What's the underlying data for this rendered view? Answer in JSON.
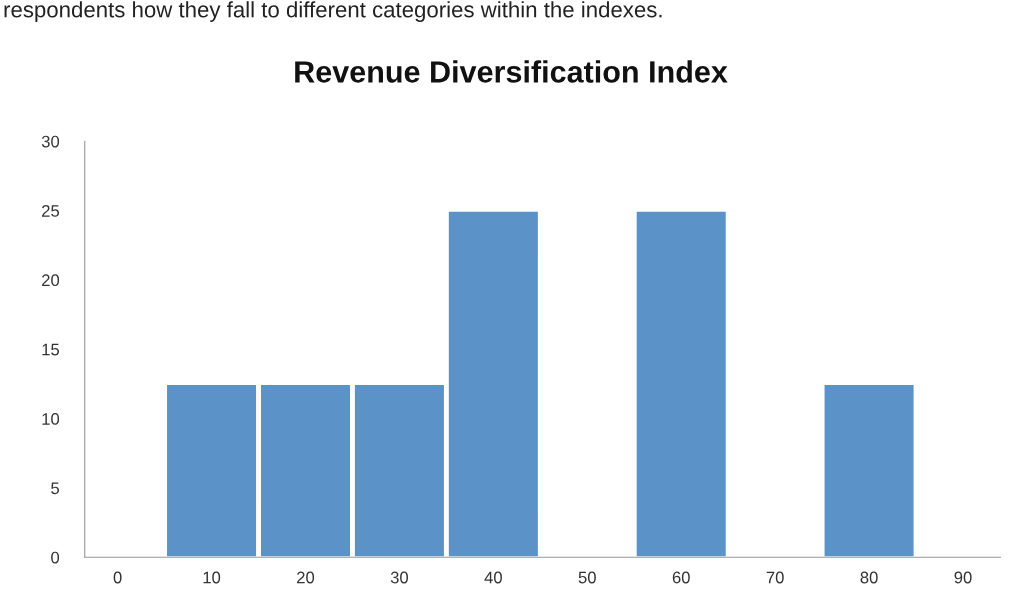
{
  "chart_data": {
    "type": "bar",
    "title": "Revenue Diversification Index",
    "annotations": [
      "respondents how they fall to different categories within the indexes."
    ],
    "categories": [
      "0",
      "10",
      "20",
      "30",
      "40",
      "50",
      "60",
      "70",
      "80",
      "90"
    ],
    "values": [
      0,
      12.5,
      12.5,
      12.5,
      25,
      0,
      25,
      0,
      12.5,
      0
    ],
    "color": "#5b93c8",
    "ylim": [
      0,
      30
    ],
    "yticks": [
      0,
      5,
      10,
      15,
      20,
      25,
      30
    ],
    "grid": false
  }
}
